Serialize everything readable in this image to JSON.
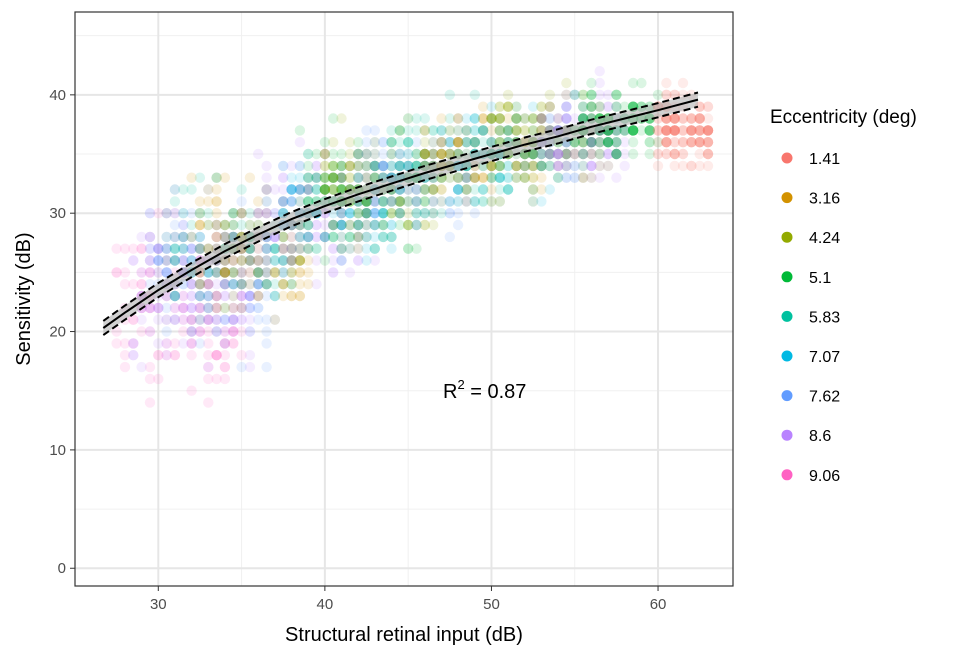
{
  "chart_data": {
    "type": "scatter",
    "xlabel": "Structural retinal input (dB)",
    "ylabel": "Sensitivity (dB)",
    "xlim": [
      25,
      64.5
    ],
    "ylim": [
      -1.5,
      47
    ],
    "x_ticks": [
      30,
      40,
      50,
      60
    ],
    "y_ticks": [
      0,
      10,
      20,
      30,
      40
    ],
    "grid": true,
    "legend": {
      "title": "Eccentricity (deg)",
      "placement": "right",
      "entries": [
        {
          "label": "1.41",
          "color": "#F8766D"
        },
        {
          "label": "3.16",
          "color": "#D39200"
        },
        {
          "label": "4.24",
          "color": "#93AA00"
        },
        {
          "label": "5.1",
          "color": "#00BA38"
        },
        {
          "label": "5.83",
          "color": "#00C19F"
        },
        {
          "label": "7.07",
          "color": "#00B9E3"
        },
        {
          "label": "7.62",
          "color": "#619CFF"
        },
        {
          "label": "8.6",
          "color": "#B983FF"
        },
        {
          "label": "9.06",
          "color": "#FF61C3"
        }
      ]
    },
    "annotation": {
      "text_base": "R",
      "superscript": "2",
      "text_rest": " = 0.87",
      "x": 50,
      "y": 14.5
    },
    "series": [
      {
        "name": "9.06",
        "color": "#FF61C3",
        "x_range": [
          27.5,
          35
        ],
        "y_center": 22,
        "y_spread": 7
      },
      {
        "name": "8.6",
        "color": "#B983FF",
        "x_range": [
          28.5,
          36
        ],
        "y_center": 24,
        "y_spread": 6
      },
      {
        "name": "7.62",
        "color": "#619CFF",
        "x_range": [
          29.5,
          37
        ],
        "y_center": 25,
        "y_spread": 6
      },
      {
        "name": "5.83",
        "color": "#00C19F",
        "x_range": [
          30.5,
          38
        ],
        "y_center": 26.5,
        "y_spread": 5
      },
      {
        "name": "3.16",
        "color": "#D39200",
        "x_range": [
          32,
          39
        ],
        "y_center": 27,
        "y_spread": 5
      },
      {
        "name": "8.6",
        "color": "#B983FF",
        "x_range": [
          36,
          43
        ],
        "y_center": 30,
        "y_spread": 5
      },
      {
        "name": "7.07",
        "color": "#00B9E3",
        "x_range": [
          37.5,
          44
        ],
        "y_center": 30.5,
        "y_spread": 4.5
      },
      {
        "name": "5.1",
        "color": "#00BA38",
        "x_range": [
          38.5,
          46
        ],
        "y_center": 31.5,
        "y_spread": 4.5
      },
      {
        "name": "4.24",
        "color": "#93AA00",
        "x_range": [
          40,
          47
        ],
        "y_center": 32.5,
        "y_spread": 4
      },
      {
        "name": "7.62",
        "color": "#619CFF",
        "x_range": [
          42,
          49
        ],
        "y_center": 33,
        "y_spread": 4
      },
      {
        "name": "5.83",
        "color": "#00C19F",
        "x_range": [
          44,
          51
        ],
        "y_center": 34,
        "y_spread": 4
      },
      {
        "name": "3.16",
        "color": "#D39200",
        "x_range": [
          46,
          53
        ],
        "y_center": 35,
        "y_spread": 3.5
      },
      {
        "name": "7.07",
        "color": "#00B9E3",
        "x_range": [
          48,
          55
        ],
        "y_center": 35.5,
        "y_spread": 3.5
      },
      {
        "name": "4.24",
        "color": "#93AA00",
        "x_range": [
          50,
          57
        ],
        "y_center": 36.5,
        "y_spread": 3.5
      },
      {
        "name": "8.6",
        "color": "#B983FF",
        "x_range": [
          53,
          58
        ],
        "y_center": 36.5,
        "y_spread": 3.5
      },
      {
        "name": "5.1",
        "color": "#00BA38",
        "x_range": [
          55,
          60
        ],
        "y_center": 37.5,
        "y_spread": 3
      },
      {
        "name": "1.41",
        "color": "#F8766D",
        "x_range": [
          60,
          63
        ],
        "y_center": 37,
        "y_spread": 3
      }
    ],
    "fit": {
      "x": [
        26.7,
        28,
        30,
        32,
        34,
        36,
        38,
        40,
        42,
        44,
        46,
        48,
        50,
        52,
        54,
        56,
        58,
        60,
        62.4
      ],
      "y": [
        20.3,
        21.6,
        23.5,
        25.2,
        26.8,
        28.2,
        29.5,
        30.6,
        31.6,
        32.5,
        33.4,
        34.2,
        35.0,
        35.8,
        36.5,
        37.3,
        38.0,
        38.7,
        39.6
      ],
      "ci_halfwidth": 0.6
    }
  }
}
